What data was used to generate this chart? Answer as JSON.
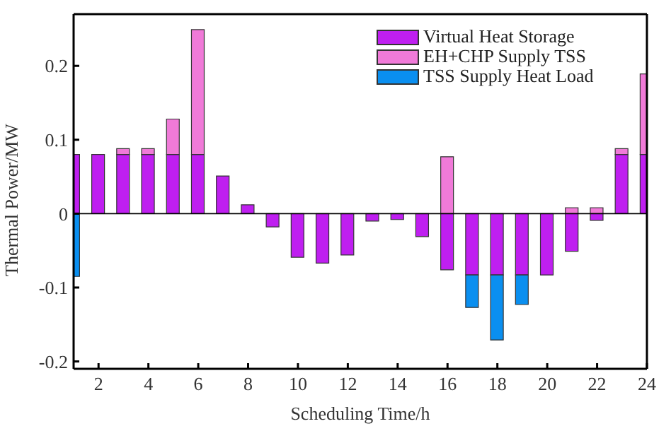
{
  "chart_data": {
    "type": "bar",
    "xlabel": "Scheduling Time/h",
    "ylabel": "Thermal Power/MW",
    "x": [
      1,
      2,
      3,
      4,
      5,
      6,
      7,
      8,
      9,
      10,
      11,
      12,
      13,
      14,
      15,
      16,
      17,
      18,
      19,
      20,
      21,
      22,
      23,
      24
    ],
    "stacked": true,
    "series": [
      {
        "name": "Virtual Heat Storage",
        "color": "#bf1ff0",
        "values": [
          0.08,
          0.08,
          0.08,
          0.08,
          0.08,
          0.08,
          0.051,
          0.012,
          -0.018,
          -0.059,
          -0.067,
          -0.056,
          -0.01,
          -0.008,
          -0.031,
          -0.076,
          -0.083,
          -0.083,
          -0.083,
          -0.083,
          -0.051,
          -0.009,
          0.08,
          0.08
        ]
      },
      {
        "name": "EH+CHP Supply TSS",
        "color": "#f07ad8",
        "values": [
          null,
          null,
          0.008,
          0.008,
          0.048,
          0.169,
          null,
          null,
          null,
          null,
          null,
          null,
          null,
          null,
          null,
          0.077,
          null,
          null,
          null,
          null,
          0.008,
          0.008,
          0.008,
          0.109
        ]
      },
      {
        "name": "TSS Supply Heat Load",
        "color": "#0a8ff0",
        "values": [
          -0.085,
          null,
          null,
          null,
          null,
          null,
          null,
          null,
          null,
          null,
          null,
          null,
          null,
          null,
          null,
          null,
          -0.044,
          -0.088,
          -0.04,
          null,
          null,
          null,
          null,
          null
        ]
      }
    ],
    "xlim": [
      1,
      24
    ],
    "xticks": [
      2,
      4,
      6,
      8,
      10,
      12,
      14,
      16,
      18,
      20,
      22,
      24
    ],
    "ylim": [
      -0.21,
      0.27
    ],
    "yticks": [
      -0.2,
      -0.1,
      0,
      0.1,
      0.2
    ],
    "ref_lines": [
      {
        "axis": "y",
        "value": 0,
        "color": "#000000"
      }
    ],
    "grid": false,
    "legend": "top right"
  }
}
